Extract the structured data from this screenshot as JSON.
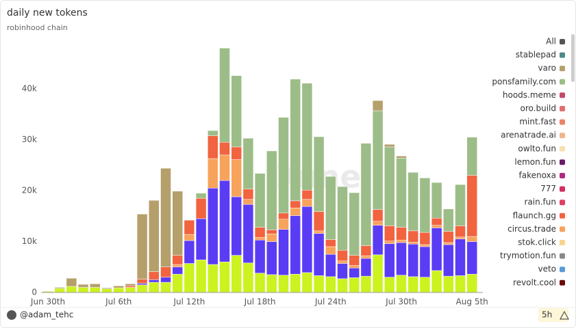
{
  "chart_data": {
    "type": "bar",
    "stacked": true,
    "title": "daily new tokens",
    "subtitle": "robinhood chain",
    "watermark": "Dune",
    "author": "@adam_tehc",
    "refresh": "5h",
    "legend_all": {
      "label": "All",
      "color": "#555555"
    },
    "categories": [
      "Jun 30th",
      null,
      null,
      null,
      null,
      null,
      "Jul 6th",
      null,
      null,
      null,
      null,
      null,
      "Jul 12th",
      null,
      null,
      null,
      null,
      null,
      "Jul 18th",
      null,
      null,
      null,
      null,
      null,
      "Jul 24th",
      null,
      null,
      null,
      null,
      null,
      "Jul 30th",
      null,
      null,
      null,
      null,
      null,
      "Aug 5th"
    ],
    "ylim": [
      0,
      48000
    ],
    "yticks": [
      0,
      {
        "value": 10000,
        "label": "10k"
      },
      {
        "value": 20000,
        "label": "20k"
      },
      {
        "value": 30000,
        "label": "30k"
      },
      {
        "value": 40000,
        "label": "40k"
      }
    ],
    "grid": false,
    "series": [
      {
        "name": "stablepad",
        "color": "#4d8a8a",
        "values": [
          0,
          0,
          0,
          0,
          0,
          0,
          0,
          0,
          0,
          0,
          0,
          0,
          0,
          0,
          0,
          0,
          0,
          0,
          0,
          0,
          0,
          0,
          0,
          0,
          0,
          0,
          0,
          0,
          0,
          0,
          0,
          0,
          0,
          0,
          0,
          0,
          0
        ]
      },
      {
        "name": "varo",
        "color": "#b5a06c",
        "values": [
          100,
          200,
          1600,
          600,
          700,
          200,
          400,
          400,
          12800,
          14000,
          19400,
          12600,
          0,
          0,
          0,
          0,
          0,
          0,
          0,
          0,
          0,
          0,
          0,
          0,
          0,
          0,
          0,
          0,
          2000,
          500,
          400,
          0,
          0,
          0,
          0,
          0,
          0
        ]
      },
      {
        "name": "ponsfamily.com",
        "color": "#9dbd88",
        "values": [
          0,
          0,
          0,
          0,
          0,
          0,
          0,
          0,
          0,
          0,
          0,
          0,
          0,
          1000,
          1000,
          18500,
          14000,
          10000,
          10600,
          15500,
          18800,
          23900,
          21000,
          14700,
          12400,
          12500,
          12300,
          20100,
          19400,
          15500,
          13600,
          11500,
          10700,
          7000,
          4400,
          8100,
          7500
        ]
      },
      {
        "name": "hoods.meme",
        "color": "#c44a6a",
        "values": [
          0,
          0,
          0,
          0,
          0,
          0,
          0,
          0,
          0,
          0,
          0,
          0,
          0,
          0,
          0,
          0,
          0,
          0,
          0,
          0,
          0,
          0,
          0,
          0,
          0,
          0,
          0,
          0,
          0,
          0,
          0,
          0,
          0,
          0,
          0,
          0,
          0
        ]
      },
      {
        "name": "oro.build",
        "color": "#e07070",
        "values": [
          0,
          0,
          0,
          0,
          0,
          0,
          0,
          0,
          0,
          0,
          0,
          0,
          0,
          0,
          0,
          0,
          0,
          0,
          0,
          0,
          0,
          0,
          0,
          0,
          0,
          0,
          0,
          0,
          0,
          0,
          0,
          0,
          0,
          0,
          0,
          0,
          0
        ]
      },
      {
        "name": "mint.fast",
        "color": "#e8836b",
        "values": [
          0,
          0,
          0,
          0,
          0,
          0,
          0,
          0,
          0,
          0,
          0,
          0,
          0,
          0,
          0,
          0,
          0,
          0,
          0,
          0,
          0,
          0,
          0,
          0,
          0,
          0,
          0,
          0,
          0,
          0,
          0,
          0,
          0,
          0,
          0,
          0,
          0
        ]
      },
      {
        "name": "arenatrade.ai",
        "color": "#f2b48c",
        "values": [
          0,
          0,
          0,
          0,
          0,
          0,
          0,
          0,
          0,
          0,
          0,
          0,
          0,
          0,
          0,
          0,
          0,
          0,
          0,
          0,
          0,
          0,
          0,
          0,
          0,
          0,
          0,
          0,
          0,
          0,
          0,
          0,
          0,
          0,
          0,
          0,
          0
        ]
      },
      {
        "name": "owlto.fun",
        "color": "#f8e0b0",
        "values": [
          0,
          0,
          0,
          0,
          0,
          0,
          0,
          0,
          0,
          0,
          0,
          0,
          0,
          0,
          0,
          0,
          0,
          0,
          0,
          0,
          0,
          0,
          0,
          0,
          0,
          0,
          0,
          0,
          0,
          0,
          0,
          0,
          0,
          0,
          0,
          0,
          0
        ]
      },
      {
        "name": "lemon.fun",
        "color": "#6a1a6a",
        "values": [
          0,
          0,
          0,
          0,
          0,
          0,
          0,
          0,
          0,
          0,
          0,
          0,
          0,
          0,
          0,
          0,
          0,
          0,
          0,
          0,
          0,
          0,
          0,
          0,
          0,
          0,
          0,
          0,
          0,
          0,
          0,
          0,
          0,
          0,
          0,
          0,
          0
        ]
      },
      {
        "name": "fakenoxa",
        "color": "#b02a80",
        "values": [
          0,
          0,
          0,
          0,
          0,
          0,
          0,
          0,
          0,
          0,
          0,
          0,
          0,
          0,
          0,
          0,
          0,
          0,
          0,
          0,
          0,
          0,
          0,
          0,
          0,
          0,
          0,
          0,
          0,
          0,
          0,
          0,
          0,
          0,
          0,
          0,
          0
        ]
      },
      {
        "name": "777",
        "color": "#d03060",
        "values": [
          0,
          0,
          0,
          0,
          0,
          0,
          0,
          0,
          0,
          0,
          0,
          0,
          0,
          0,
          0,
          0,
          0,
          0,
          0,
          0,
          0,
          0,
          0,
          0,
          0,
          0,
          0,
          0,
          0,
          0,
          0,
          0,
          0,
          0,
          0,
          0,
          0
        ]
      },
      {
        "name": "rain.fun",
        "color": "#e04060",
        "values": [
          0,
          0,
          0,
          0,
          0,
          0,
          0,
          0,
          0,
          0,
          0,
          0,
          0,
          0,
          0,
          0,
          0,
          0,
          0,
          0,
          0,
          0,
          0,
          0,
          0,
          0,
          0,
          0,
          0,
          0,
          0,
          0,
          0,
          0,
          0,
          0,
          0
        ]
      },
      {
        "name": "flaunch.gg",
        "color": "#f26340",
        "values": [
          0,
          0,
          0,
          0,
          0,
          0,
          0,
          300,
          800,
          1600,
          2000,
          1800,
          2800,
          4000,
          4500,
          2500,
          2500,
          2000,
          2000,
          800,
          1200,
          1400,
          1800,
          3800,
          1400,
          2100,
          2000,
          2000,
          2300,
          3000,
          2500,
          2200,
          2400,
          1400,
          2200,
          2200,
          12000
        ]
      },
      {
        "name": "circus.trade",
        "color": "#f7a35c",
        "values": [
          0,
          0,
          0,
          0,
          0,
          0,
          0,
          0,
          0,
          0,
          0,
          500,
          1200,
          0,
          5800,
          5000,
          7300,
          1000,
          500,
          1500,
          2000,
          1500,
          1400,
          500,
          1500,
          500,
          500,
          500,
          800,
          500,
          500,
          400,
          400,
          500,
          400,
          400,
          1000
        ]
      },
      {
        "name": "stok.click",
        "color": "#fbd38d",
        "values": [
          0,
          0,
          0,
          0,
          0,
          0,
          0,
          0,
          0,
          0,
          0,
          0,
          0,
          0,
          0,
          0,
          0,
          0,
          0,
          0,
          0,
          0,
          0,
          0,
          0,
          0,
          0,
          0,
          0,
          0,
          0,
          0,
          0,
          0,
          0,
          0,
          0
        ]
      },
      {
        "name": "trymotion.fun",
        "color": "#888888",
        "values": [
          0,
          0,
          0,
          0,
          0,
          0,
          0,
          0,
          0,
          0,
          0,
          0,
          0,
          0,
          0,
          0,
          0,
          0,
          0,
          0,
          0,
          0,
          0,
          0,
          0,
          0,
          0,
          0,
          0,
          0,
          0,
          0,
          0,
          0,
          0,
          0,
          0
        ]
      },
      {
        "name": "veto",
        "color": "#5b9bd5",
        "values": [
          0,
          0,
          0,
          0,
          0,
          0,
          0,
          0,
          0,
          0,
          0,
          0,
          0,
          0,
          0,
          0,
          0,
          0,
          0,
          0,
          0,
          0,
          0,
          0,
          0,
          0,
          0,
          0,
          0,
          0,
          0,
          0,
          0,
          0,
          0,
          0,
          0
        ]
      },
      {
        "name": "revolt.cool",
        "color": "#6b0a0a",
        "values": [
          0,
          0,
          0,
          0,
          0,
          0,
          0,
          0,
          0,
          0,
          0,
          0,
          0,
          0,
          0,
          0,
          0,
          0,
          0,
          0,
          0,
          0,
          0,
          0,
          0,
          0,
          0,
          0,
          0,
          0,
          0,
          0,
          0,
          0,
          0,
          0,
          0
        ]
      },
      {
        "color": "#5b3cf5",
        "values": [
          0,
          0,
          0,
          0,
          0,
          0,
          0,
          0,
          300,
          500,
          1000,
          1400,
          4500,
          8100,
          15000,
          16000,
          11500,
          11500,
          6500,
          6500,
          9000,
          11500,
          13000,
          8300,
          4400,
          3000,
          1900,
          3500,
          5800,
          6600,
          6400,
          6400,
          6000,
          8400,
          6200,
          7200,
          6400
        ]
      },
      {
        "color": "#ccf21f",
        "values": [
          200,
          800,
          1200,
          1000,
          1000,
          700,
          900,
          1000,
          1500,
          2000,
          2000,
          3600,
          5700,
          6400,
          5500,
          6000,
          7300,
          5800,
          3800,
          3500,
          3400,
          3600,
          3900,
          3300,
          3100,
          2700,
          2900,
          3200,
          7400,
          3000,
          3400,
          3100,
          3000,
          4300,
          3200,
          3300,
          3600
        ]
      }
    ]
  }
}
